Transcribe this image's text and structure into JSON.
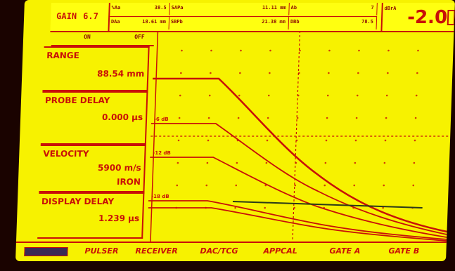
{
  "header": {
    "gain_label": "GAIN",
    "gain_value": "6.7",
    "readings": [
      {
        "label": "%Aa",
        "value": "38.5"
      },
      {
        "label": "SAPa",
        "value": "11.11 mm"
      },
      {
        "label": "Ab",
        "value": "7"
      },
      {
        "label": "DAa",
        "value": "18.61 mm"
      },
      {
        "label": "SBPb",
        "value": "21.38 mm"
      },
      {
        "label": "DBb",
        "value": "78.5"
      }
    ],
    "right_label": "dBrA",
    "right_value": "-2.0"
  },
  "menu_top": {
    "left": "ON",
    "right": "OFF"
  },
  "params": [
    {
      "label": "RANGE",
      "value": "88.54 mm"
    },
    {
      "label": "PROBE DELAY",
      "value": "0.000 µs"
    },
    {
      "label": "VELOCITY",
      "value": "5900 m/s",
      "extra": "IRON"
    },
    {
      "label": "DISPLAY DELAY",
      "value": "1.239 µs"
    }
  ],
  "curve_labels": [
    "-6 dB",
    "-12 dB",
    "-18 dB"
  ],
  "softkeys": [
    "PULSER",
    "RECEIVER",
    "DAC/TCG",
    "APPCAL",
    "GATE A",
    "GATE B"
  ],
  "colors": {
    "screen": "#f7f200",
    "trace": "#c81008",
    "bezel": "#1a0300"
  }
}
